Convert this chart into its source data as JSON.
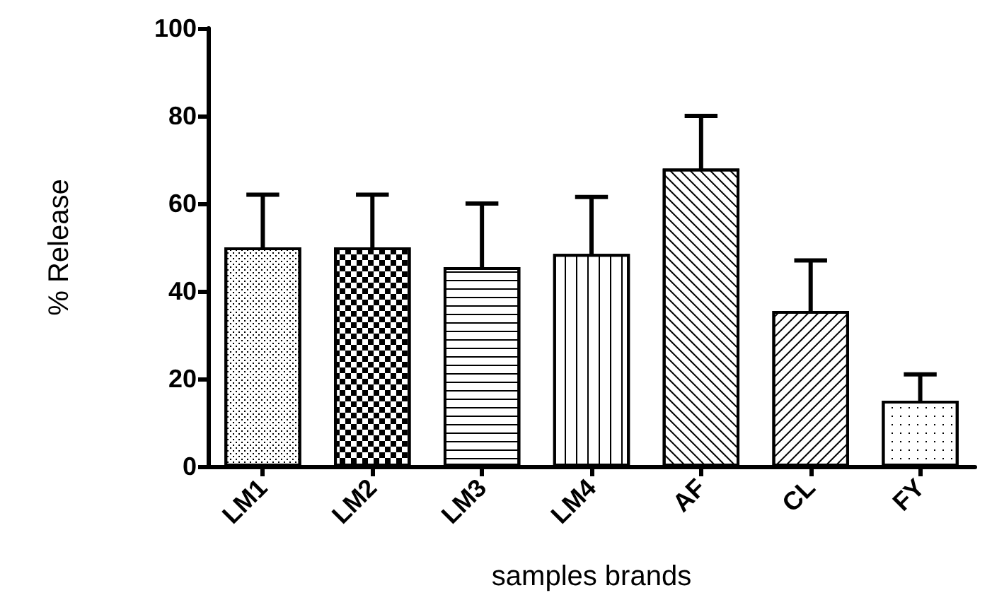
{
  "chart_data": {
    "type": "bar",
    "xlabel": "samples brands",
    "ylabel": "% Release",
    "categories": [
      "LM1",
      "LM2",
      "LM3",
      "LM4",
      "AF",
      "CL",
      "FY"
    ],
    "values": [
      50,
      50,
      45.5,
      48.5,
      68,
      35.5,
      15
    ],
    "errors": [
      12,
      12,
      14.5,
      13,
      12,
      11.5,
      6
    ],
    "color": "#000000",
    "ylim": [
      0,
      100
    ],
    "yticks": [
      0,
      20,
      40,
      60,
      80,
      100
    ],
    "grid": false
  }
}
